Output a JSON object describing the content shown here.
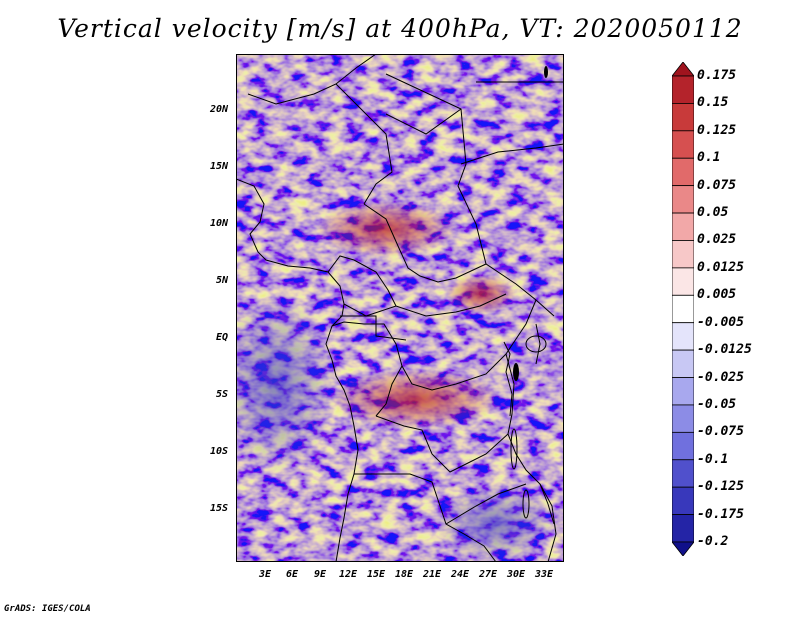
{
  "title": "Vertical velocity [m/s] at 400hPa, VT: 2020050112",
  "footer": "GrADS: IGES/COLA",
  "lat_labels": [
    "20N",
    "15N",
    "10N",
    "5N",
    "EQ",
    "5S",
    "10S",
    "15S"
  ],
  "lon_labels": [
    "3E",
    "6E",
    "9E",
    "12E",
    "15E",
    "18E",
    "21E",
    "24E",
    "27E",
    "30E",
    "33E"
  ],
  "colorbar": {
    "levels": [
      "0.175",
      "0.15",
      "0.125",
      "0.1",
      "0.075",
      "0.05",
      "0.025",
      "0.0125",
      "0.005",
      "-0.005",
      "-0.0125",
      "-0.025",
      "-0.05",
      "-0.075",
      "-0.1",
      "-0.125",
      "-0.175",
      "-0.2"
    ],
    "colors": [
      "#a0141e",
      "#b4232b",
      "#c83a3a",
      "#d65050",
      "#e16a6a",
      "#ea8888",
      "#f2a8a8",
      "#f7c8c8",
      "#fbe6e6",
      "#ffffff",
      "#e4e4fb",
      "#c8c8f4",
      "#a8a8ee",
      "#8c8ce6",
      "#7070de",
      "#5050cc",
      "#3838bb",
      "#2424a6",
      "#10108a"
    ]
  }
}
